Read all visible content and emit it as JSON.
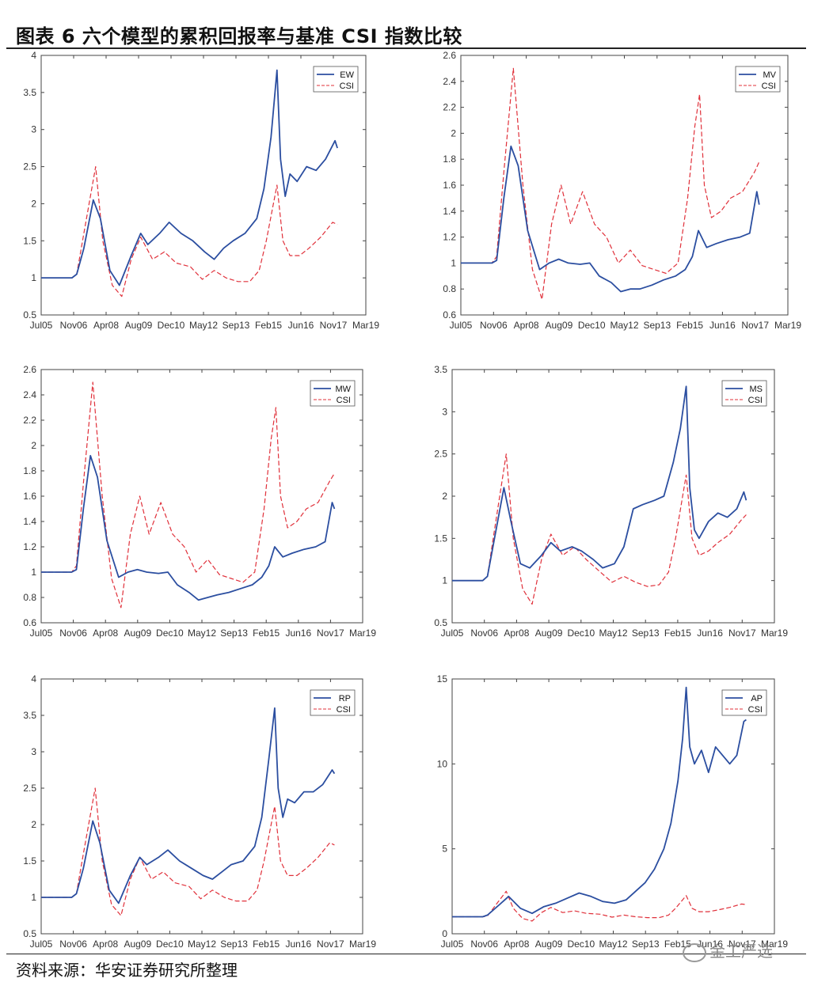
{
  "figure": {
    "title": "图表 6 六个模型的累积回报率与基准 CSI 指数比较",
    "source": "资料来源：华安证券研究所整理",
    "watermark": "金工严选"
  },
  "colors": {
    "model": "#2b4ea0",
    "csi": "#e0303a"
  },
  "chart_data": [
    {
      "type": "line",
      "name": "EW",
      "xticks": [
        "Jul05",
        "Nov06",
        "Apr08",
        "Aug09",
        "Dec10",
        "May12",
        "Sep13",
        "Feb15",
        "Jun16",
        "Nov17",
        "Mar19"
      ],
      "xlim": [
        2005.5,
        2019.2
      ],
      "ylim": [
        0.5,
        4
      ],
      "yticks": [
        0.5,
        1,
        1.5,
        2,
        2.5,
        3,
        3.5,
        4
      ],
      "legend": [
        "EW",
        "CSI"
      ],
      "series": [
        {
          "name": "EW",
          "x": [
            2005.5,
            2006.8,
            2007.0,
            2007.3,
            2007.7,
            2008.0,
            2008.4,
            2008.8,
            2009.3,
            2009.7,
            2010.0,
            2010.5,
            2010.9,
            2011.4,
            2011.9,
            2012.4,
            2012.8,
            2013.2,
            2013.6,
            2014.1,
            2014.6,
            2014.9,
            2015.2,
            2015.45,
            2015.6,
            2015.8,
            2016.0,
            2016.3,
            2016.7,
            2017.1,
            2017.5,
            2017.9,
            2018.0
          ],
          "y": [
            1.0,
            1.0,
            1.05,
            1.4,
            2.05,
            1.8,
            1.1,
            0.9,
            1.3,
            1.6,
            1.45,
            1.6,
            1.75,
            1.6,
            1.5,
            1.35,
            1.25,
            1.4,
            1.5,
            1.6,
            1.8,
            2.2,
            2.9,
            3.8,
            2.6,
            2.1,
            2.4,
            2.3,
            2.5,
            2.45,
            2.6,
            2.85,
            2.75
          ]
        },
        {
          "name": "CSI",
          "x": [
            2005.5,
            2006.8,
            2007.0,
            2007.3,
            2007.8,
            2008.1,
            2008.5,
            2008.9,
            2009.3,
            2009.7,
            2010.2,
            2010.7,
            2011.2,
            2011.8,
            2012.3,
            2012.8,
            2013.3,
            2013.8,
            2014.3,
            2014.7,
            2015.0,
            2015.3,
            2015.45,
            2015.7,
            2016.0,
            2016.4,
            2016.8,
            2017.3,
            2017.8,
            2018.0
          ],
          "y": [
            1.0,
            1.0,
            1.05,
            1.6,
            2.5,
            1.5,
            0.9,
            0.75,
            1.25,
            1.55,
            1.25,
            1.35,
            1.2,
            1.15,
            0.98,
            1.1,
            1.0,
            0.95,
            0.95,
            1.1,
            1.5,
            2.0,
            2.25,
            1.5,
            1.3,
            1.3,
            1.4,
            1.55,
            1.75,
            1.72
          ]
        }
      ]
    },
    {
      "type": "line",
      "name": "MV",
      "xticks": [
        "Jul05",
        "Nov06",
        "Apr08",
        "Aug09",
        "Dec10",
        "May12",
        "Sep13",
        "Feb15",
        "Jun16",
        "Nov17",
        "Mar19"
      ],
      "xlim": [
        2005.5,
        2019.2
      ],
      "ylim": [
        0.6,
        2.6
      ],
      "yticks": [
        0.6,
        0.8,
        1,
        1.2,
        1.4,
        1.6,
        1.8,
        2,
        2.2,
        2.4,
        2.6
      ],
      "legend": [
        "MV",
        "CSI"
      ],
      "series": [
        {
          "name": "MV",
          "x": [
            2005.5,
            2006.8,
            2007.0,
            2007.3,
            2007.6,
            2007.9,
            2008.3,
            2008.8,
            2009.2,
            2009.6,
            2010.0,
            2010.5,
            2010.9,
            2011.3,
            2011.8,
            2012.2,
            2012.6,
            2013.0,
            2013.5,
            2014.0,
            2014.5,
            2014.9,
            2015.2,
            2015.45,
            2015.8,
            2016.2,
            2016.7,
            2017.2,
            2017.6,
            2017.9,
            2018.0
          ],
          "y": [
            1.0,
            1.0,
            1.02,
            1.5,
            1.9,
            1.75,
            1.25,
            0.95,
            1.0,
            1.03,
            1.0,
            0.99,
            1.0,
            0.9,
            0.85,
            0.78,
            0.8,
            0.8,
            0.83,
            0.87,
            0.9,
            0.95,
            1.05,
            1.25,
            1.12,
            1.15,
            1.18,
            1.2,
            1.23,
            1.55,
            1.45
          ]
        },
        {
          "name": "CSI",
          "x": [
            2005.5,
            2006.8,
            2007.0,
            2007.3,
            2007.7,
            2008.1,
            2008.5,
            2008.9,
            2009.3,
            2009.7,
            2010.1,
            2010.6,
            2011.1,
            2011.6,
            2012.1,
            2012.6,
            2013.1,
            2013.6,
            2014.1,
            2014.6,
            2015.0,
            2015.3,
            2015.5,
            2015.7,
            2016.0,
            2016.4,
            2016.8,
            2017.3,
            2017.8,
            2018.0
          ],
          "y": [
            1.0,
            1.0,
            1.05,
            1.7,
            2.5,
            1.6,
            0.95,
            0.72,
            1.3,
            1.6,
            1.3,
            1.55,
            1.3,
            1.2,
            1.0,
            1.1,
            0.98,
            0.95,
            0.92,
            1.0,
            1.5,
            2.05,
            2.3,
            1.6,
            1.35,
            1.4,
            1.5,
            1.55,
            1.7,
            1.78
          ]
        }
      ]
    },
    {
      "type": "line",
      "name": "MW",
      "xticks": [
        "Jul05",
        "Nov06",
        "Apr08",
        "Aug09",
        "Dec10",
        "May12",
        "Sep13",
        "Feb15",
        "Jun16",
        "Nov17",
        "Mar19"
      ],
      "xlim": [
        2005.5,
        2019.2
      ],
      "ylim": [
        0.6,
        2.6
      ],
      "yticks": [
        0.6,
        0.8,
        1,
        1.2,
        1.4,
        1.6,
        1.8,
        2,
        2.2,
        2.4,
        2.6
      ],
      "legend": [
        "MW",
        "CSI"
      ],
      "series": [
        {
          "name": "MW",
          "x": [
            2005.5,
            2006.8,
            2007.0,
            2007.3,
            2007.6,
            2007.9,
            2008.3,
            2008.8,
            2009.2,
            2009.6,
            2010.0,
            2010.5,
            2010.9,
            2011.3,
            2011.8,
            2012.2,
            2012.6,
            2013.0,
            2013.5,
            2014.0,
            2014.5,
            2014.9,
            2015.2,
            2015.45,
            2015.8,
            2016.2,
            2016.7,
            2017.2,
            2017.6,
            2017.9,
            2018.0
          ],
          "y": [
            1.0,
            1.0,
            1.02,
            1.5,
            1.92,
            1.75,
            1.25,
            0.96,
            1.0,
            1.02,
            1.0,
            0.99,
            1.0,
            0.9,
            0.84,
            0.78,
            0.8,
            0.82,
            0.84,
            0.87,
            0.9,
            0.96,
            1.05,
            1.2,
            1.12,
            1.15,
            1.18,
            1.2,
            1.24,
            1.55,
            1.5
          ]
        },
        {
          "name": "CSI",
          "x": [
            2005.5,
            2006.8,
            2007.0,
            2007.3,
            2007.7,
            2008.1,
            2008.5,
            2008.9,
            2009.3,
            2009.7,
            2010.1,
            2010.6,
            2011.1,
            2011.6,
            2012.1,
            2012.6,
            2013.1,
            2013.6,
            2014.1,
            2014.6,
            2015.0,
            2015.3,
            2015.5,
            2015.7,
            2016.0,
            2016.4,
            2016.8,
            2017.3,
            2017.8,
            2018.0
          ],
          "y": [
            1.0,
            1.0,
            1.05,
            1.7,
            2.5,
            1.6,
            0.95,
            0.72,
            1.3,
            1.6,
            1.3,
            1.55,
            1.3,
            1.2,
            1.0,
            1.1,
            0.98,
            0.95,
            0.92,
            1.0,
            1.5,
            2.05,
            2.3,
            1.6,
            1.35,
            1.4,
            1.5,
            1.55,
            1.72,
            1.78
          ]
        }
      ]
    },
    {
      "type": "line",
      "name": "MS",
      "xticks": [
        "Jul05",
        "Nov06",
        "Apr08",
        "Aug09",
        "Dec10",
        "May12",
        "Sep13",
        "Feb15",
        "Jun16",
        "Nov17",
        "Mar19"
      ],
      "xlim": [
        2005.5,
        2019.2
      ],
      "ylim": [
        0.5,
        3.5
      ],
      "yticks": [
        0.5,
        1,
        1.5,
        2,
        2.5,
        3,
        3.5
      ],
      "legend": [
        "MS",
        "CSI"
      ],
      "series": [
        {
          "name": "MS",
          "x": [
            2005.5,
            2006.8,
            2007.0,
            2007.3,
            2007.7,
            2008.0,
            2008.4,
            2008.8,
            2009.3,
            2009.7,
            2010.1,
            2010.6,
            2011.0,
            2011.5,
            2011.9,
            2012.4,
            2012.8,
            2013.2,
            2013.6,
            2014.1,
            2014.5,
            2014.9,
            2015.2,
            2015.45,
            2015.6,
            2015.8,
            2016.0,
            2016.4,
            2016.8,
            2017.2,
            2017.6,
            2017.9,
            2018.0
          ],
          "y": [
            1.0,
            1.0,
            1.05,
            1.5,
            2.1,
            1.7,
            1.2,
            1.15,
            1.3,
            1.45,
            1.35,
            1.4,
            1.35,
            1.25,
            1.15,
            1.2,
            1.4,
            1.85,
            1.9,
            1.95,
            2.0,
            2.4,
            2.8,
            3.3,
            2.1,
            1.6,
            1.5,
            1.7,
            1.8,
            1.75,
            1.85,
            2.05,
            1.95
          ]
        },
        {
          "name": "CSI",
          "x": [
            2005.5,
            2006.8,
            2007.0,
            2007.3,
            2007.8,
            2008.1,
            2008.5,
            2008.9,
            2009.3,
            2009.7,
            2010.2,
            2010.7,
            2011.2,
            2011.8,
            2012.3,
            2012.8,
            2013.3,
            2013.8,
            2014.3,
            2014.7,
            2015.0,
            2015.3,
            2015.45,
            2015.7,
            2016.0,
            2016.4,
            2016.8,
            2017.3,
            2017.8,
            2018.0
          ],
          "y": [
            1.0,
            1.0,
            1.05,
            1.6,
            2.5,
            1.5,
            0.9,
            0.72,
            1.25,
            1.55,
            1.3,
            1.4,
            1.25,
            1.1,
            0.98,
            1.05,
            0.98,
            0.93,
            0.95,
            1.1,
            1.5,
            2.0,
            2.25,
            1.5,
            1.3,
            1.35,
            1.45,
            1.55,
            1.72,
            1.78
          ]
        }
      ]
    },
    {
      "type": "line",
      "name": "RP",
      "xticks": [
        "Jul05",
        "Nov06",
        "Apr08",
        "Aug09",
        "Dec10",
        "May12",
        "Sep13",
        "Feb15",
        "Jun16",
        "Nov17",
        "Mar19"
      ],
      "xlim": [
        2005.5,
        2019.2
      ],
      "ylim": [
        0.5,
        4
      ],
      "yticks": [
        0.5,
        1,
        1.5,
        2,
        2.5,
        3,
        3.5,
        4
      ],
      "legend": [
        "RP",
        "CSI"
      ],
      "series": [
        {
          "name": "RP",
          "x": [
            2005.5,
            2006.8,
            2007.0,
            2007.3,
            2007.7,
            2008.0,
            2008.4,
            2008.8,
            2009.3,
            2009.7,
            2010.0,
            2010.5,
            2010.9,
            2011.4,
            2011.9,
            2012.4,
            2012.8,
            2013.2,
            2013.6,
            2014.1,
            2014.6,
            2014.9,
            2015.2,
            2015.45,
            2015.6,
            2015.8,
            2016.0,
            2016.3,
            2016.7,
            2017.1,
            2017.5,
            2017.9,
            2018.0
          ],
          "y": [
            1.0,
            1.0,
            1.05,
            1.4,
            2.05,
            1.75,
            1.1,
            0.92,
            1.3,
            1.55,
            1.45,
            1.55,
            1.65,
            1.5,
            1.4,
            1.3,
            1.25,
            1.35,
            1.45,
            1.5,
            1.7,
            2.1,
            2.9,
            3.6,
            2.5,
            2.1,
            2.35,
            2.3,
            2.45,
            2.45,
            2.55,
            2.75,
            2.7
          ]
        },
        {
          "name": "CSI",
          "x": [
            2005.5,
            2006.8,
            2007.0,
            2007.3,
            2007.8,
            2008.1,
            2008.5,
            2008.9,
            2009.3,
            2009.7,
            2010.2,
            2010.7,
            2011.2,
            2011.8,
            2012.3,
            2012.8,
            2013.3,
            2013.8,
            2014.3,
            2014.7,
            2015.0,
            2015.3,
            2015.45,
            2015.7,
            2016.0,
            2016.4,
            2016.8,
            2017.3,
            2017.8,
            2018.0
          ],
          "y": [
            1.0,
            1.0,
            1.05,
            1.6,
            2.5,
            1.5,
            0.9,
            0.75,
            1.25,
            1.55,
            1.25,
            1.35,
            1.2,
            1.15,
            0.98,
            1.1,
            1.0,
            0.95,
            0.95,
            1.1,
            1.5,
            2.0,
            2.25,
            1.5,
            1.3,
            1.3,
            1.4,
            1.55,
            1.75,
            1.72
          ]
        }
      ]
    },
    {
      "type": "line",
      "name": "AP",
      "xticks": [
        "Jul05",
        "Nov06",
        "Apr08",
        "Aug09",
        "Dec10",
        "May12",
        "Sep13",
        "Feb15",
        "Jun16",
        "Nov17",
        "Mar19"
      ],
      "xlim": [
        2005.5,
        2019.2
      ],
      "ylim": [
        0,
        15
      ],
      "yticks": [
        0,
        5,
        10,
        15
      ],
      "legend": [
        "AP",
        "CSI"
      ],
      "series": [
        {
          "name": "AP",
          "x": [
            2005.5,
            2006.8,
            2007.0,
            2007.5,
            2007.9,
            2008.4,
            2008.9,
            2009.4,
            2009.9,
            2010.4,
            2010.9,
            2011.4,
            2011.9,
            2012.4,
            2012.9,
            2013.3,
            2013.7,
            2014.1,
            2014.5,
            2014.8,
            2015.1,
            2015.3,
            2015.45,
            2015.6,
            2015.8,
            2016.1,
            2016.4,
            2016.7,
            2017.0,
            2017.3,
            2017.6,
            2017.9,
            2018.0
          ],
          "y": [
            1.0,
            1.0,
            1.1,
            1.7,
            2.2,
            1.5,
            1.2,
            1.6,
            1.8,
            2.1,
            2.4,
            2.2,
            1.9,
            1.8,
            2.0,
            2.5,
            3.0,
            3.8,
            5.0,
            6.5,
            9.0,
            11.5,
            14.5,
            11.0,
            10.0,
            10.8,
            9.5,
            11.0,
            10.5,
            10.0,
            10.5,
            12.5,
            12.6
          ]
        },
        {
          "name": "CSI",
          "x": [
            2005.5,
            2006.8,
            2007.0,
            2007.3,
            2007.8,
            2008.1,
            2008.5,
            2008.9,
            2009.3,
            2009.7,
            2010.2,
            2010.7,
            2011.2,
            2011.8,
            2012.3,
            2012.8,
            2013.3,
            2013.8,
            2014.3,
            2014.7,
            2015.0,
            2015.3,
            2015.45,
            2015.7,
            2016.0,
            2016.4,
            2016.8,
            2017.3,
            2017.8,
            2018.0
          ],
          "y": [
            1.0,
            1.0,
            1.05,
            1.6,
            2.5,
            1.5,
            0.9,
            0.75,
            1.25,
            1.55,
            1.25,
            1.35,
            1.2,
            1.15,
            0.98,
            1.1,
            1.0,
            0.95,
            0.95,
            1.1,
            1.5,
            2.0,
            2.25,
            1.5,
            1.3,
            1.3,
            1.4,
            1.55,
            1.75,
            1.72
          ]
        }
      ]
    }
  ]
}
